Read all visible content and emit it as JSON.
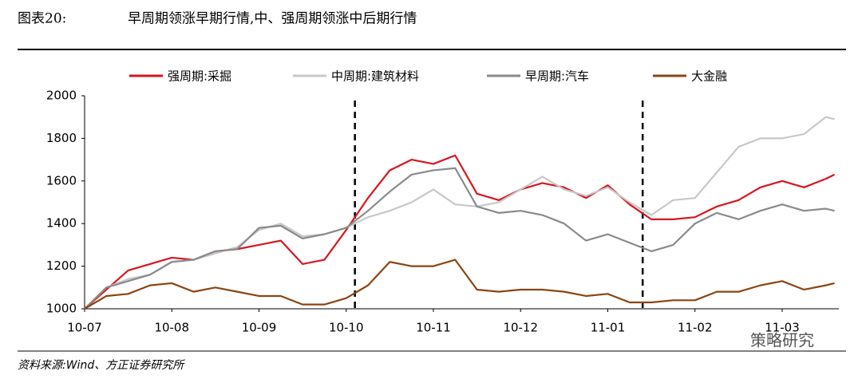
{
  "header": {
    "label": "图表20:"
  },
  "footer": {
    "source": "资料来源:Wind、方正证券研究所",
    "watermark": "策略研究"
  },
  "chart_data": {
    "type": "line",
    "title": "早周期领涨早期行情,中、强周期领涨中后期行情",
    "x": [
      0,
      0.25,
      0.5,
      0.75,
      1,
      1.25,
      1.5,
      1.75,
      2,
      2.25,
      2.5,
      2.75,
      3,
      3.25,
      3.5,
      3.75,
      4,
      4.25,
      4.5,
      4.75,
      5,
      5.25,
      5.5,
      5.75,
      6,
      6.25,
      6.5,
      6.75,
      7,
      7.25,
      7.5,
      7.75,
      8,
      8.25,
      8.5,
      8.6
    ],
    "xlim": [
      0,
      8.65
    ],
    "xticks": [
      {
        "value": 0,
        "label": "10-07"
      },
      {
        "value": 1,
        "label": "10-08"
      },
      {
        "value": 2,
        "label": "10-09"
      },
      {
        "value": 3,
        "label": "10-10"
      },
      {
        "value": 4,
        "label": "10-11"
      },
      {
        "value": 5,
        "label": "10-12"
      },
      {
        "value": 6,
        "label": "11-01"
      },
      {
        "value": 7,
        "label": "11-02"
      },
      {
        "value": 8,
        "label": "11-03"
      }
    ],
    "ylim": [
      1000,
      2000
    ],
    "yticks": [
      1000,
      1200,
      1400,
      1600,
      1800,
      2000
    ],
    "vlines": [
      3.1,
      6.4
    ],
    "legend": "top",
    "series": [
      {
        "name": "强周期:采掘",
        "color": "#d7161e",
        "values": [
          1000,
          1090,
          1180,
          1210,
          1240,
          1230,
          1270,
          1280,
          1300,
          1320,
          1210,
          1230,
          1370,
          1520,
          1650,
          1700,
          1680,
          1720,
          1540,
          1510,
          1560,
          1590,
          1570,
          1520,
          1580,
          1490,
          1420,
          1420,
          1430,
          1480,
          1510,
          1570,
          1600,
          1570,
          1610,
          1630
        ]
      },
      {
        "name": "中周期:建筑材料",
        "color": "#c8c8c8",
        "values": [
          1000,
          1100,
          1140,
          1160,
          1220,
          1230,
          1260,
          1290,
          1370,
          1400,
          1340,
          1350,
          1380,
          1430,
          1460,
          1500,
          1560,
          1490,
          1480,
          1500,
          1560,
          1620,
          1560,
          1530,
          1570,
          1500,
          1440,
          1510,
          1520,
          1640,
          1760,
          1800,
          1800,
          1820,
          1900,
          1890
        ]
      },
      {
        "name": "早周期:汽车",
        "color": "#8a8a8a",
        "values": [
          1000,
          1100,
          1130,
          1160,
          1220,
          1230,
          1270,
          1280,
          1380,
          1390,
          1330,
          1350,
          1380,
          1460,
          1550,
          1630,
          1650,
          1660,
          1480,
          1450,
          1460,
          1440,
          1400,
          1320,
          1350,
          1310,
          1270,
          1300,
          1400,
          1450,
          1420,
          1460,
          1490,
          1460,
          1470,
          1460
        ]
      },
      {
        "name": "大金融",
        "color": "#8b4513",
        "values": [
          1000,
          1060,
          1070,
          1110,
          1120,
          1080,
          1100,
          1080,
          1060,
          1060,
          1020,
          1020,
          1050,
          1110,
          1220,
          1200,
          1200,
          1230,
          1090,
          1080,
          1090,
          1090,
          1080,
          1060,
          1070,
          1030,
          1030,
          1040,
          1040,
          1080,
          1080,
          1110,
          1130,
          1090,
          1110,
          1120
        ]
      }
    ]
  }
}
